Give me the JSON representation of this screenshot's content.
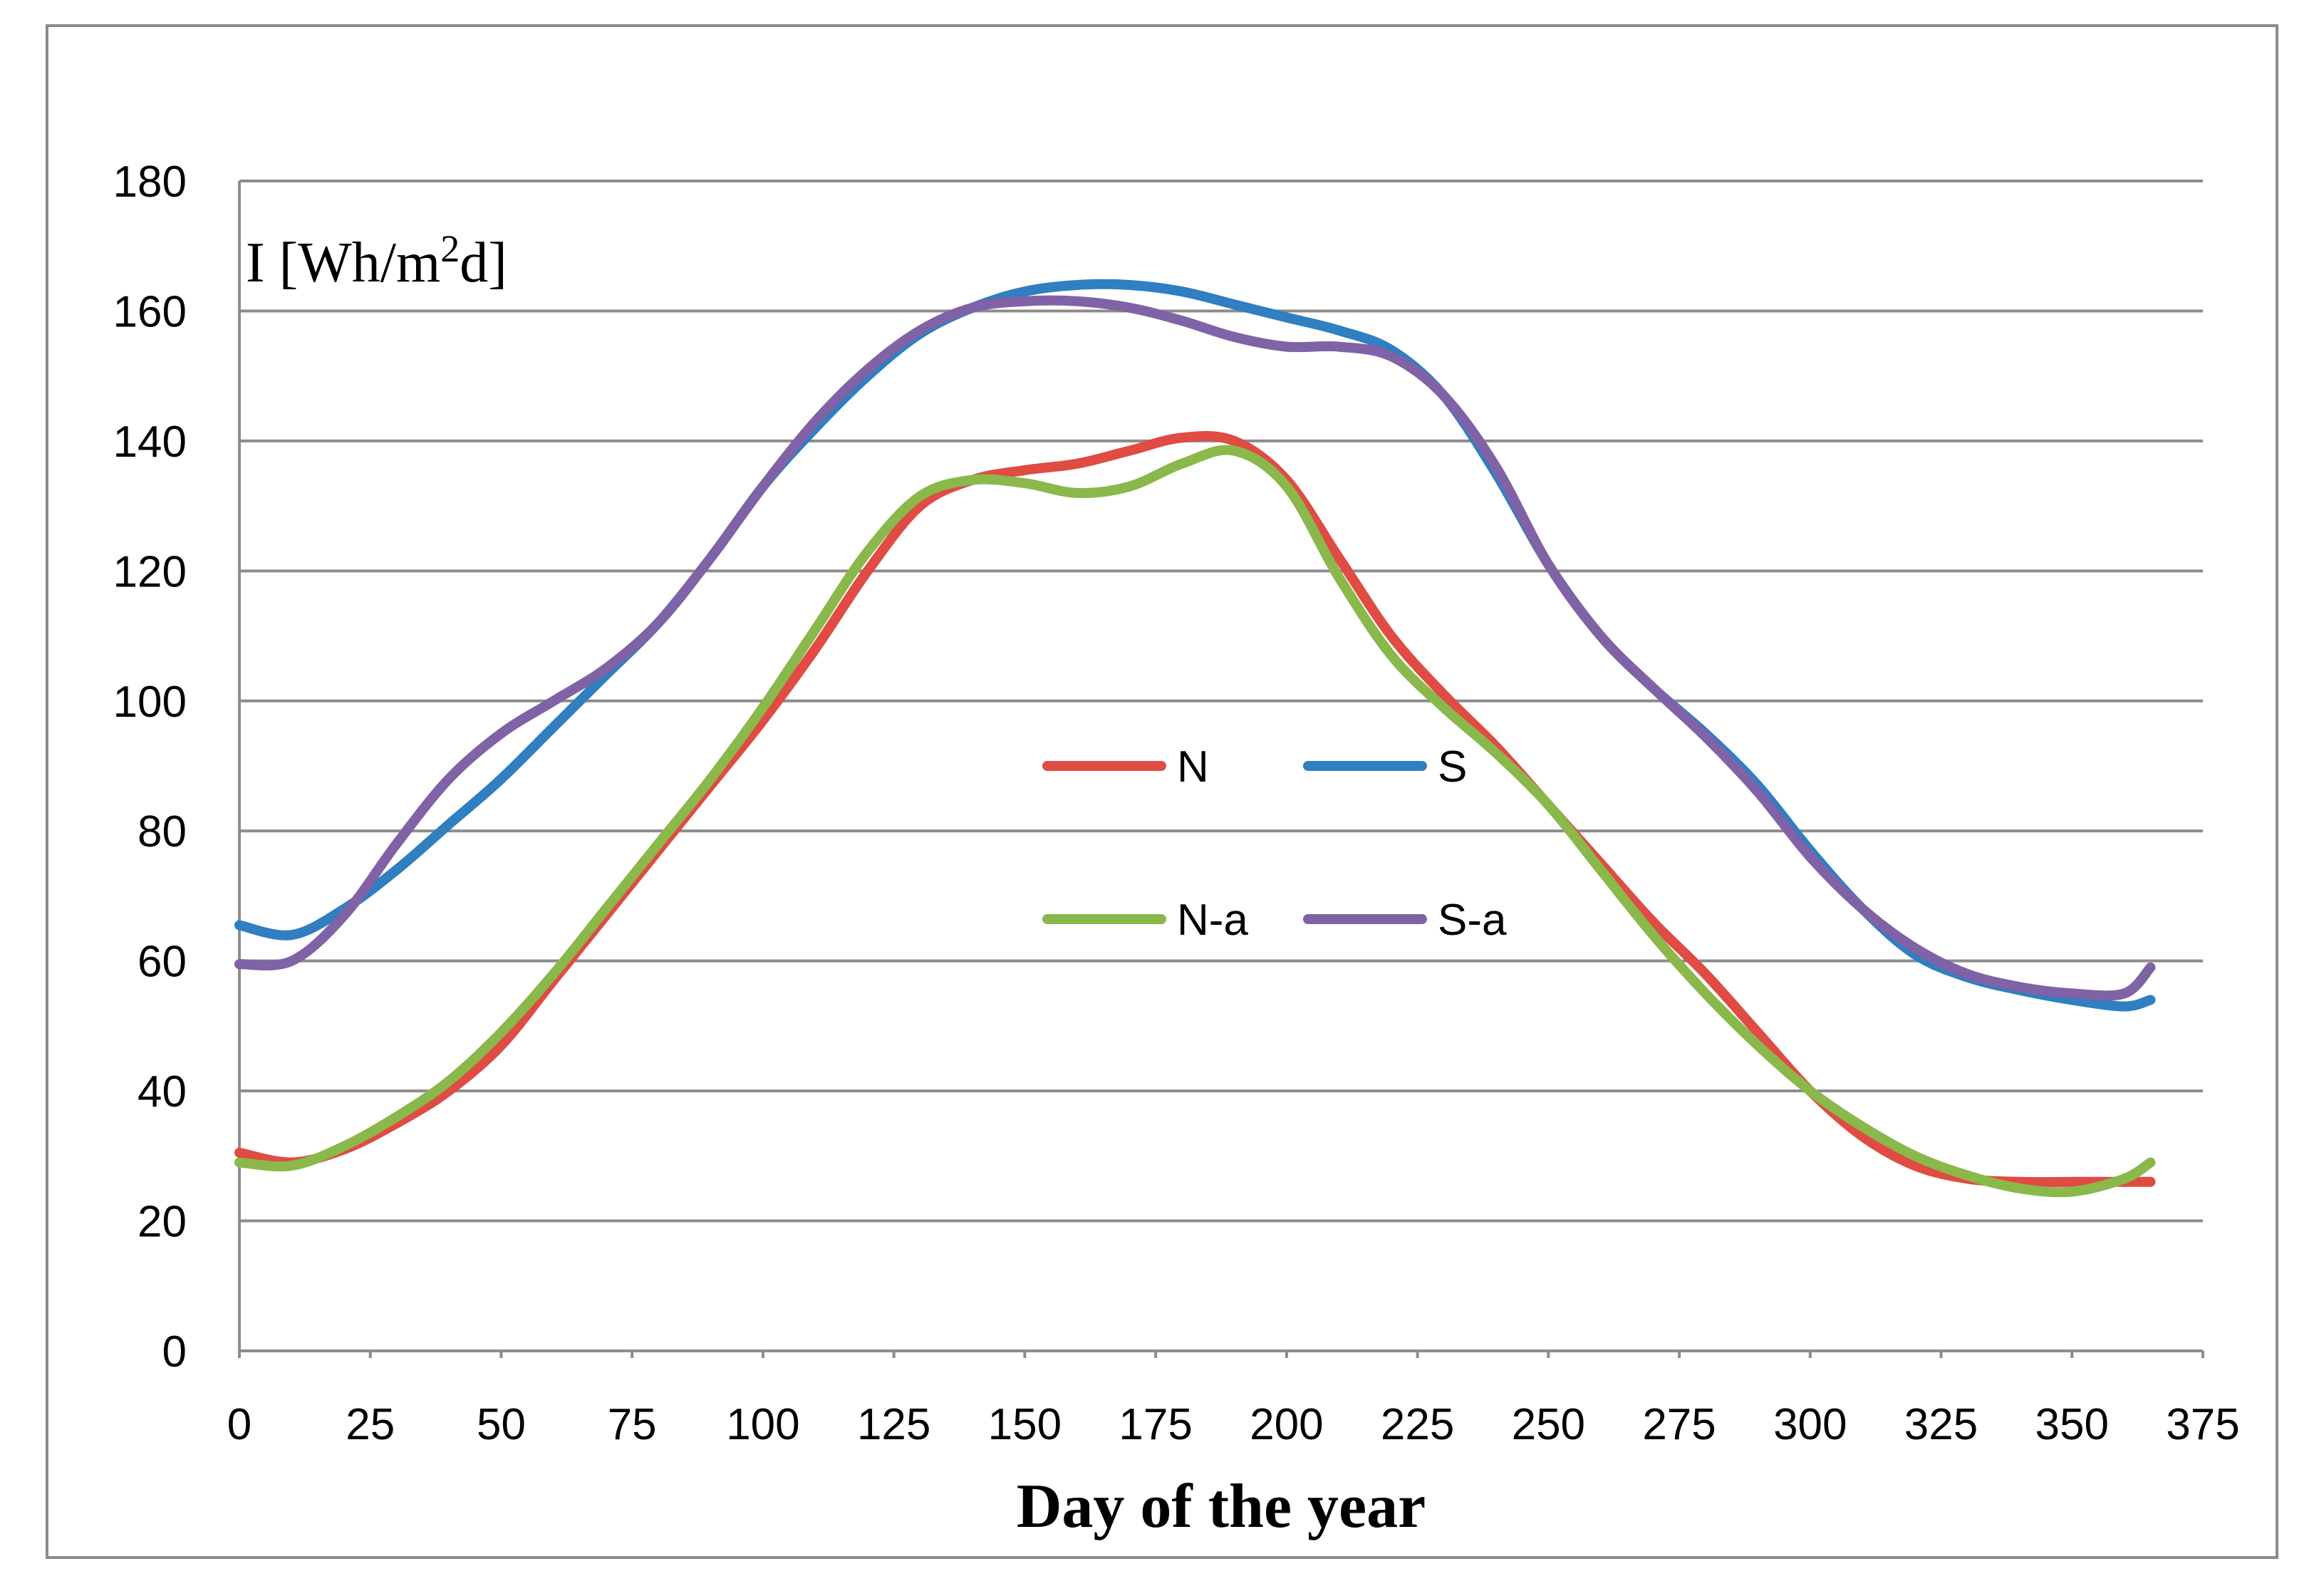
{
  "chart_data": {
    "type": "line",
    "title": "",
    "xlabel": "Day of the year",
    "ylabel": {
      "main": "I [Wh/m",
      "sup": "2",
      "tail": "d]"
    },
    "xlim": [
      0,
      375
    ],
    "ylim": [
      0,
      180
    ],
    "xticks": [
      0,
      25,
      50,
      75,
      100,
      125,
      150,
      175,
      200,
      225,
      250,
      275,
      300,
      325,
      350,
      375
    ],
    "yticks": [
      0,
      20,
      40,
      60,
      80,
      100,
      120,
      140,
      160,
      180
    ],
    "grid": true,
    "legend_placement": "center",
    "series": [
      {
        "name": "N",
        "color": "#e04b43",
        "x": [
          0,
          10,
          20,
          30,
          40,
          50,
          60,
          70,
          80,
          90,
          100,
          110,
          120,
          130,
          140,
          150,
          160,
          170,
          180,
          190,
          200,
          210,
          220,
          230,
          240,
          250,
          260,
          270,
          280,
          290,
          300,
          310,
          320,
          330,
          340,
          350,
          360,
          365
        ],
        "values": [
          30.5,
          29,
          31,
          35,
          40,
          47,
          57,
          67,
          77,
          87,
          97,
          108,
          120,
          130,
          134,
          135.5,
          136.5,
          138.5,
          140.5,
          140,
          134,
          122,
          110,
          101,
          93,
          84,
          75,
          66,
          58,
          49,
          40,
          33,
          28.5,
          26.5,
          26,
          26,
          26,
          26
        ]
      },
      {
        "name": "S",
        "color": "#2f7fc1",
        "x": [
          0,
          10,
          20,
          30,
          40,
          50,
          60,
          70,
          80,
          90,
          100,
          110,
          120,
          130,
          140,
          150,
          160,
          170,
          180,
          190,
          200,
          210,
          220,
          230,
          240,
          250,
          260,
          270,
          280,
          290,
          300,
          310,
          320,
          330,
          340,
          350,
          360,
          365
        ],
        "values": [
          65.5,
          64,
          68,
          74,
          81,
          88,
          96,
          104,
          112,
          122,
          133,
          142,
          150,
          156.5,
          160.5,
          163,
          164,
          164,
          163,
          161,
          159,
          157,
          154,
          147,
          135,
          121,
          110,
          102,
          95,
          87,
          77,
          68,
          61,
          57.5,
          55.5,
          54,
          53,
          54
        ]
      },
      {
        "name": "N-a",
        "color": "#8ab84b",
        "x": [
          0,
          10,
          20,
          30,
          40,
          50,
          60,
          70,
          80,
          90,
          100,
          110,
          120,
          130,
          140,
          150,
          160,
          170,
          180,
          190,
          200,
          210,
          220,
          230,
          240,
          250,
          260,
          270,
          280,
          290,
          300,
          310,
          320,
          330,
          340,
          350,
          360,
          365
        ],
        "values": [
          29,
          28.5,
          31.5,
          36,
          41.5,
          49,
          58,
          68,
          78,
          88,
          99,
          111,
          123,
          131.5,
          134,
          133.5,
          132,
          133,
          136.5,
          138.5,
          133,
          119,
          107,
          99,
          92,
          84,
          74,
          64,
          55,
          47,
          40,
          34.5,
          30,
          27,
          25,
          24.5,
          26.5,
          29
        ]
      },
      {
        "name": "S-a",
        "color": "#8062a6",
        "x": [
          0,
          10,
          20,
          30,
          40,
          50,
          60,
          70,
          80,
          90,
          100,
          110,
          120,
          130,
          140,
          150,
          160,
          170,
          180,
          190,
          200,
          210,
          220,
          230,
          240,
          250,
          260,
          270,
          280,
          290,
          300,
          310,
          320,
          330,
          340,
          350,
          360,
          365
        ],
        "values": [
          59.5,
          60,
          67,
          78,
          88,
          95,
          100,
          105,
          112,
          122,
          133,
          143,
          151,
          157,
          160.5,
          161.5,
          161.5,
          160.5,
          158.5,
          156,
          154.5,
          154.5,
          153,
          147,
          136,
          121,
          110,
          102,
          94.5,
          86,
          76,
          68,
          62,
          58,
          56,
          55,
          55,
          59
        ]
      }
    ],
    "legend": [
      {
        "label": "N",
        "series_index": 0
      },
      {
        "label": "S",
        "series_index": 1
      },
      {
        "label": "N-a",
        "series_index": 2
      },
      {
        "label": "S-a",
        "series_index": 3
      }
    ]
  }
}
